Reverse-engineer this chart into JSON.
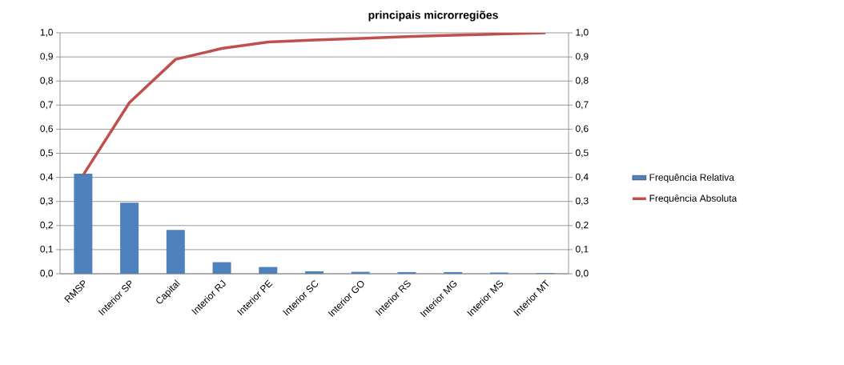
{
  "chart_data": {
    "type": "bar",
    "title": "principais microrregiões",
    "categories": [
      "RMSP",
      "Interior SP",
      "Capital",
      "Interior RJ",
      "Interior PE",
      "Interior SC",
      "Interior GO",
      "Interior RS",
      "Interior MG",
      "Interior MS",
      "Interior MT"
    ],
    "series": [
      {
        "name": "Frequência Relativa",
        "color": "#4f81bd",
        "values": [
          0.415,
          0.295,
          0.182,
          0.048,
          0.028,
          0.01,
          0.008,
          0.007,
          0.007,
          0.005,
          0.003
        ]
      },
      {
        "name": "Frequência Absoluta",
        "type": "line",
        "axis": "y2",
        "color": "#c0504d",
        "values": [
          0.41,
          0.71,
          0.89,
          0.935,
          0.962,
          0.97,
          0.977,
          0.984,
          0.99,
          0.995,
          1.0
        ]
      }
    ],
    "ylim": [
      0,
      1
    ],
    "y2lim": [
      0,
      1
    ],
    "yticks": [
      {
        "value": 0,
        "label": "0,0"
      },
      {
        "value": 0.1,
        "label": "0,1"
      },
      {
        "value": 0.2,
        "label": "0,2"
      },
      {
        "value": 0.3,
        "label": "0,3"
      },
      {
        "value": 0.4,
        "label": "0,4"
      },
      {
        "value": 0.5,
        "label": "0,5"
      },
      {
        "value": 0.6,
        "label": "0,6"
      },
      {
        "value": 0.7,
        "label": "0,7"
      },
      {
        "value": 0.8,
        "label": "0,8"
      },
      {
        "value": 0.9,
        "label": "0,9"
      },
      {
        "value": 1,
        "label": "1,0"
      }
    ],
    "y2ticks": [
      {
        "value": 0,
        "label": "0,0"
      },
      {
        "value": 0.1,
        "label": "0,1"
      },
      {
        "value": 0.2,
        "label": "0,2"
      },
      {
        "value": 0.3,
        "label": "0,3"
      },
      {
        "value": 0.4,
        "label": "0,4"
      },
      {
        "value": 0.5,
        "label": "0,5"
      },
      {
        "value": 0.6,
        "label": "0,6"
      },
      {
        "value": 0.7,
        "label": "0,7"
      },
      {
        "value": 0.8,
        "label": "0,8"
      },
      {
        "value": 0.9,
        "label": "0,9"
      },
      {
        "value": 1,
        "label": "1,0"
      }
    ],
    "grid": "y",
    "legend": "right",
    "marker": "none",
    "line_style": "solid"
  }
}
